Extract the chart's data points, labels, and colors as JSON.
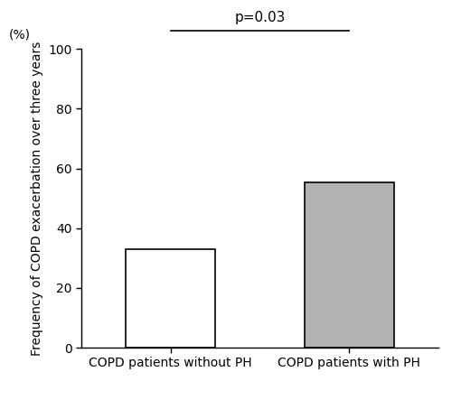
{
  "categories": [
    "COPD patients without PH",
    "COPD patients with PH"
  ],
  "values": [
    33,
    55.5
  ],
  "bar_colors": [
    "#ffffff",
    "#b2b2b2"
  ],
  "bar_edgecolors": [
    "#000000",
    "#000000"
  ],
  "ylabel": "Frequency of COPD exacerbation over three years",
  "ylabel_unit": "(%)",
  "ylim": [
    0,
    100
  ],
  "yticks": [
    0,
    20,
    40,
    60,
    80,
    100
  ],
  "pvalue_text": "p=0.03",
  "background_color": "#ffffff",
  "bar_width": 0.5,
  "tick_fontsize": 10,
  "label_fontsize": 10,
  "pvalue_fontsize": 11
}
